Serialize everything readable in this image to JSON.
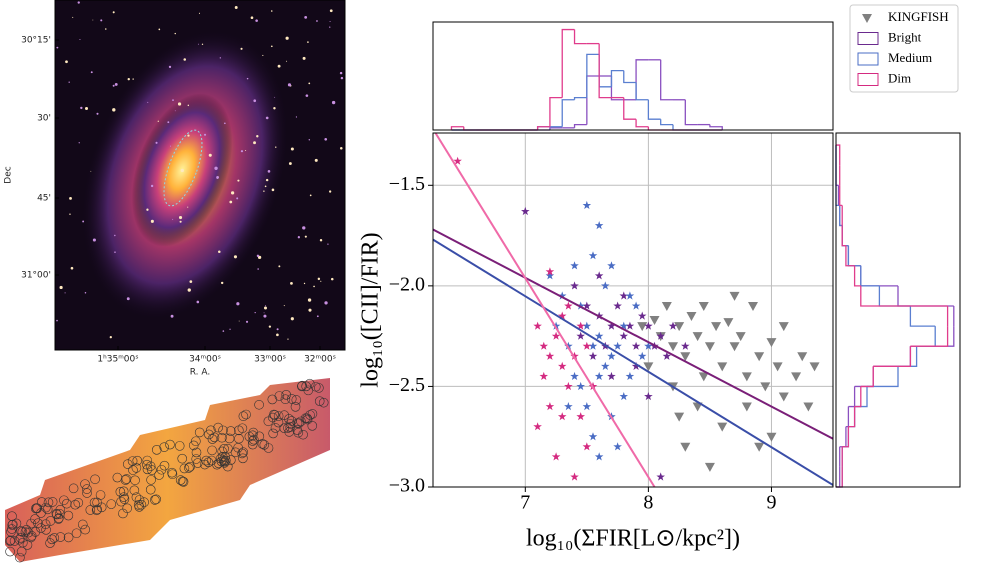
{
  "chart_data": [
    {
      "type": "image",
      "xlabel": "R. A.",
      "ylabel": "Dec",
      "xticks": [
        "1ʰ35ᵐ00ˢ",
        "34ᵐ00ˢ",
        "33ᵐ00ˢ",
        "32ᵐ00ˢ"
      ],
      "yticks": [
        "30°15'",
        "30'",
        "45'",
        "31°00'"
      ]
    },
    {
      "type": "scatter",
      "xlabel": "log₁₀(ΣFIR[L⊙/kpc²])",
      "ylabel": "log₁₀([CII]/FIR)",
      "xlim": [
        6.25,
        9.5
      ],
      "ylim": [
        -3.0,
        -1.24
      ],
      "xticks": [
        7,
        8,
        9
      ],
      "yticks": [
        {
          "value": -3.0,
          "label": "−3.0"
        },
        {
          "value": -2.5,
          "label": "−2.5"
        },
        {
          "value": -2.0,
          "label": "−2.0"
        },
        {
          "value": -1.5,
          "label": "−1.5"
        }
      ],
      "grid": true,
      "legend": "upper right",
      "series": [
        {
          "name": "KINGFISH",
          "color": "#808080",
          "marker": "v",
          "x": [
            8.05,
            8.1,
            8.15,
            8.2,
            8.25,
            8.3,
            8.35,
            8.4,
            8.45,
            8.5,
            8.55,
            8.6,
            8.65,
            8.7,
            8.75,
            8.8,
            8.85,
            8.9,
            8.95,
            9.0,
            9.05,
            9.1,
            9.2,
            9.3,
            9.25,
            8.2,
            8.4,
            8.6,
            8.8,
            9.0,
            8.3,
            8.5,
            7.95,
            8.0,
            8.7,
            9.1,
            8.9,
            8.45,
            8.25,
            9.35
          ],
          "y": [
            -2.17,
            -2.25,
            -2.1,
            -2.3,
            -2.2,
            -2.35,
            -2.15,
            -2.25,
            -2.1,
            -2.3,
            -2.2,
            -2.4,
            -2.18,
            -2.3,
            -2.25,
            -2.45,
            -2.1,
            -2.35,
            -2.5,
            -2.28,
            -2.4,
            -2.2,
            -2.45,
            -2.6,
            -2.35,
            -2.5,
            -2.6,
            -2.7,
            -2.6,
            -2.75,
            -2.8,
            -2.9,
            -2.2,
            -2.4,
            -2.05,
            -2.55,
            -2.8,
            -2.45,
            -2.65,
            -2.4
          ]
        },
        {
          "name": "Bright",
          "color": "#6a2a8e",
          "marker": "*",
          "x": [
            7.4,
            7.5,
            7.6,
            7.7,
            7.75,
            7.8,
            7.85,
            7.9,
            7.95,
            8.0,
            8.05,
            8.1,
            8.15,
            8.2,
            7.65,
            7.55,
            7.45,
            7.0,
            8.3,
            7.7,
            8.0,
            8.1,
            7.6,
            7.8,
            7.9
          ],
          "y": [
            -2.0,
            -2.1,
            -2.15,
            -2.2,
            -2.1,
            -2.25,
            -2.2,
            -2.3,
            -2.15,
            -2.2,
            -2.3,
            -2.25,
            -2.35,
            -2.2,
            -2.3,
            -2.35,
            -2.25,
            -1.63,
            -2.3,
            -2.45,
            -2.55,
            -2.95,
            -1.95,
            -2.05,
            -2.4
          ]
        },
        {
          "name": "Medium",
          "color": "#4a6cc4",
          "marker": "*",
          "x": [
            7.5,
            7.6,
            7.55,
            7.4,
            7.3,
            7.45,
            7.5,
            7.55,
            7.6,
            7.65,
            7.7,
            7.75,
            7.8,
            7.85,
            7.9,
            7.95,
            7.35,
            7.4,
            7.5,
            7.55,
            7.6,
            7.7,
            7.8,
            7.45,
            7.65,
            7.7,
            7.85,
            7.6,
            7.35,
            7.75,
            8.0,
            7.2,
            7.25
          ],
          "y": [
            -1.6,
            -1.7,
            -1.85,
            -1.9,
            -2.05,
            -2.1,
            -2.2,
            -2.3,
            -2.25,
            -2.4,
            -2.35,
            -2.3,
            -2.2,
            -2.45,
            -2.1,
            -2.35,
            -2.3,
            -2.45,
            -2.6,
            -2.75,
            -2.85,
            -2.65,
            -2.55,
            -2.5,
            -2.0,
            -1.9,
            -2.05,
            -2.45,
            -2.6,
            -2.8,
            -2.3,
            -1.95,
            -2.2
          ]
        },
        {
          "name": "Dim",
          "color": "#d42a80",
          "marker": "*",
          "x": [
            6.45,
            7.1,
            7.15,
            7.2,
            7.25,
            7.3,
            7.35,
            7.2,
            7.15,
            7.3,
            7.4,
            7.45,
            7.5,
            7.1,
            7.25,
            7.4,
            7.55,
            7.35,
            7.45,
            7.3,
            7.5,
            7.2
          ],
          "y": [
            -1.38,
            -2.2,
            -2.3,
            -2.35,
            -2.25,
            -2.4,
            -2.5,
            -2.6,
            -2.45,
            -2.15,
            -2.35,
            -2.65,
            -2.8,
            -2.7,
            -2.85,
            -2.95,
            -2.5,
            -2.1,
            -2.2,
            -2.65,
            -2.3,
            -1.93
          ]
        }
      ],
      "fit_lines": [
        {
          "color": "#7a1f78",
          "x": [
            6.25,
            9.5
          ],
          "y": [
            -1.72,
            -2.76
          ]
        },
        {
          "color": "#3a4ea8",
          "x": [
            6.25,
            9.5
          ],
          "y": [
            -1.77,
            -2.99
          ]
        },
        {
          "color": "#f06aa8",
          "x": [
            6.25,
            8.05
          ],
          "y": [
            -1.22,
            -3.0
          ]
        }
      ]
    },
    {
      "type": "histogram",
      "orientation": "vertical",
      "bins": [
        6.4,
        6.5,
        6.6,
        6.7,
        6.8,
        6.9,
        7.0,
        7.1,
        7.2,
        7.3,
        7.4,
        7.5,
        7.6,
        7.7,
        7.8,
        7.9,
        8.0,
        8.1,
        8.2,
        8.3,
        8.4,
        8.5,
        8.6
      ],
      "xlim": [
        6.25,
        9.5
      ],
      "ylim": [
        0,
        10
      ],
      "series": [
        {
          "color": "#8a50c0",
          "counts": [
            0,
            0,
            0,
            0,
            0,
            0,
            0,
            0,
            0.2,
            0.2,
            0.5,
            5,
            5,
            2.8,
            2.8,
            6.5,
            6.5,
            2.8,
            2.8,
            0.5,
            0.5,
            0.3
          ]
        },
        {
          "color": "#5a7fd0",
          "counts": [
            0,
            0,
            0,
            0,
            0,
            0,
            0,
            0.3,
            0.3,
            2.8,
            3,
            7,
            4,
            5.5,
            4.4,
            2.8,
            1,
            0.5,
            0,
            0,
            0,
            0
          ]
        },
        {
          "color": "#e03c8c",
          "counts": [
            0.3,
            0,
            0,
            0,
            0,
            0,
            0,
            0.3,
            3,
            9.3,
            8,
            8,
            3,
            3,
            1,
            0.3,
            0,
            0,
            0,
            0,
            0,
            0
          ]
        }
      ]
    },
    {
      "type": "histogram",
      "orientation": "horizontal",
      "bins": [
        -3.0,
        -2.9,
        -2.8,
        -2.7,
        -2.6,
        -2.5,
        -2.4,
        -2.3,
        -2.2,
        -2.1,
        -2.0,
        -1.9,
        -1.8,
        -1.7,
        -1.6,
        -1.5,
        -1.4,
        -1.3
      ],
      "ylim": [
        -3.0,
        -1.24
      ],
      "xlim": [
        0,
        10
      ],
      "series": [
        {
          "color": "#8a50c0",
          "counts": [
            0.3,
            0.3,
            0.8,
            1,
            1.5,
            3,
            6,
            9.5,
            9.5,
            5,
            2,
            1,
            0.5,
            0.3,
            0.2,
            0,
            0
          ]
        },
        {
          "color": "#5a7fd0",
          "counts": [
            0.5,
            0.5,
            1,
            1.5,
            2.5,
            5,
            6.5,
            8,
            6,
            3.5,
            2,
            1,
            0.5,
            0.3,
            0,
            0,
            0
          ]
        },
        {
          "color": "#e03c8c",
          "counts": [
            0.5,
            0.5,
            1,
            1.5,
            2,
            3,
            6,
            9,
            9,
            2,
            1.5,
            0.8,
            0.5,
            0.5,
            0.3,
            0.3,
            0.3
          ]
        }
      ]
    }
  ]
}
